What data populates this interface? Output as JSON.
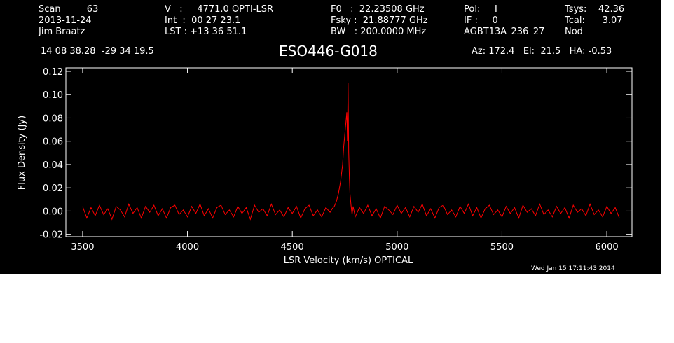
{
  "header": {
    "col1": [
      "Scan         63",
      "2013-11-24",
      "Jim Braatz"
    ],
    "col2": [
      "V   :     4771.0 OPTI-LSR",
      "Int  :  00 27 23.1",
      "LST : +13 36 51.1"
    ],
    "col3": [
      "F0   :  22.23508 GHz",
      "Fsky :  21.88777 GHz",
      "BW   : 200.0000 MHz"
    ],
    "col4": [
      "Pol:     I",
      "IF :     0",
      "AGBT13A_236_27"
    ],
    "col5": [
      "Tsys:    42.36",
      "Tcal:      3.07",
      "Nod"
    ],
    "coords": "14 08 38.28  -29 34 19.5",
    "source": "ESO446-G018",
    "azelha": "Az: 172.4   El:  21.5   HA: -0.53",
    "timestamp": "Wed Jan 15 17:11:43 2014"
  },
  "colors": {
    "background": "#000000",
    "foreground": "#ffffff",
    "trace": "#ff0000"
  },
  "chart_data": {
    "type": "line",
    "title": "ESO446-G018",
    "xlabel": "LSR Velocity (km/s) OPTICAL",
    "ylabel": "Flux Density (Jy)",
    "xlim": [
      3420,
      6120
    ],
    "ylim": [
      -0.022,
      0.123
    ],
    "xticks": [
      3500,
      4000,
      4500,
      5000,
      5500,
      6000
    ],
    "xtick_labels": [
      "3500",
      "4000",
      "4500",
      "5000",
      "5500",
      "6000"
    ],
    "yticks": [
      -0.02,
      0.0,
      0.02,
      0.04,
      0.06,
      0.08,
      0.1,
      0.12
    ],
    "ytick_labels": [
      "-0.02",
      "0.00",
      "0.02",
      "0.04",
      "0.06",
      "0.08",
      "0.10",
      "0.12"
    ],
    "series": [
      {
        "color": "#ff0000",
        "x": [
          3500,
          3520,
          3540,
          3560,
          3580,
          3600,
          3620,
          3640,
          3660,
          3680,
          3700,
          3720,
          3740,
          3760,
          3780,
          3800,
          3820,
          3840,
          3860,
          3880,
          3900,
          3920,
          3940,
          3960,
          3980,
          4000,
          4020,
          4040,
          4060,
          4080,
          4100,
          4120,
          4140,
          4160,
          4180,
          4200,
          4220,
          4240,
          4260,
          4280,
          4300,
          4320,
          4340,
          4360,
          4380,
          4400,
          4420,
          4440,
          4460,
          4480,
          4500,
          4520,
          4540,
          4560,
          4580,
          4600,
          4620,
          4640,
          4660,
          4680,
          4690,
          4700,
          4710,
          4720,
          4730,
          4740,
          4745,
          4750,
          4755,
          4760,
          4763,
          4766,
          4769,
          4772,
          4775,
          4780,
          4785,
          4790,
          4800,
          4820,
          4840,
          4860,
          4880,
          4900,
          4920,
          4940,
          4960,
          4980,
          5000,
          5020,
          5040,
          5060,
          5080,
          5100,
          5120,
          5140,
          5160,
          5180,
          5200,
          5220,
          5240,
          5260,
          5280,
          5300,
          5320,
          5340,
          5360,
          5380,
          5400,
          5420,
          5440,
          5460,
          5480,
          5500,
          5520,
          5540,
          5560,
          5580,
          5600,
          5620,
          5640,
          5660,
          5680,
          5700,
          5720,
          5740,
          5760,
          5780,
          5800,
          5820,
          5840,
          5860,
          5880,
          5900,
          5920,
          5940,
          5960,
          5980,
          6000,
          6020,
          6040,
          6060
        ],
        "y": [
          0.004,
          -0.006,
          0.003,
          -0.004,
          0.005,
          -0.003,
          0.002,
          -0.007,
          0.004,
          0.001,
          -0.005,
          0.006,
          -0.002,
          0.003,
          -0.006,
          0.004,
          -0.001,
          0.005,
          -0.004,
          0.002,
          -0.006,
          0.003,
          0.005,
          -0.003,
          0.001,
          -0.005,
          0.004,
          -0.002,
          0.006,
          -0.004,
          0.002,
          -0.006,
          0.003,
          0.005,
          -0.003,
          0.001,
          -0.005,
          0.004,
          -0.002,
          0.003,
          -0.007,
          0.005,
          -0.001,
          0.002,
          -0.004,
          0.006,
          -0.003,
          0.001,
          -0.005,
          0.003,
          -0.002,
          0.004,
          -0.006,
          0.002,
          0.005,
          -0.004,
          0.001,
          -0.005,
          0.003,
          -0.001,
          0.002,
          0.004,
          0.008,
          0.015,
          0.025,
          0.04,
          0.055,
          0.065,
          0.075,
          0.085,
          0.06,
          0.11,
          0.05,
          0.03,
          0.015,
          0.005,
          -0.003,
          0.004,
          -0.005,
          0.003,
          -0.002,
          0.005,
          -0.004,
          0.002,
          -0.006,
          0.004,
          0.001,
          -0.003,
          0.005,
          -0.002,
          0.003,
          -0.005,
          0.004,
          -0.001,
          0.006,
          -0.004,
          0.002,
          -0.006,
          0.003,
          0.005,
          -0.003,
          0.001,
          -0.005,
          0.004,
          -0.002,
          0.006,
          -0.004,
          0.003,
          -0.006,
          0.002,
          0.005,
          -0.003,
          0.001,
          -0.005,
          0.004,
          -0.002,
          0.003,
          -0.006,
          0.005,
          -0.001,
          0.002,
          -0.004,
          0.006,
          -0.003,
          0.001,
          -0.005,
          0.004,
          -0.002,
          0.003,
          -0.006,
          0.005,
          -0.001,
          0.002,
          -0.004,
          0.006,
          -0.003,
          0.001,
          -0.005,
          0.004,
          -0.002,
          0.003,
          -0.006
        ]
      }
    ]
  }
}
